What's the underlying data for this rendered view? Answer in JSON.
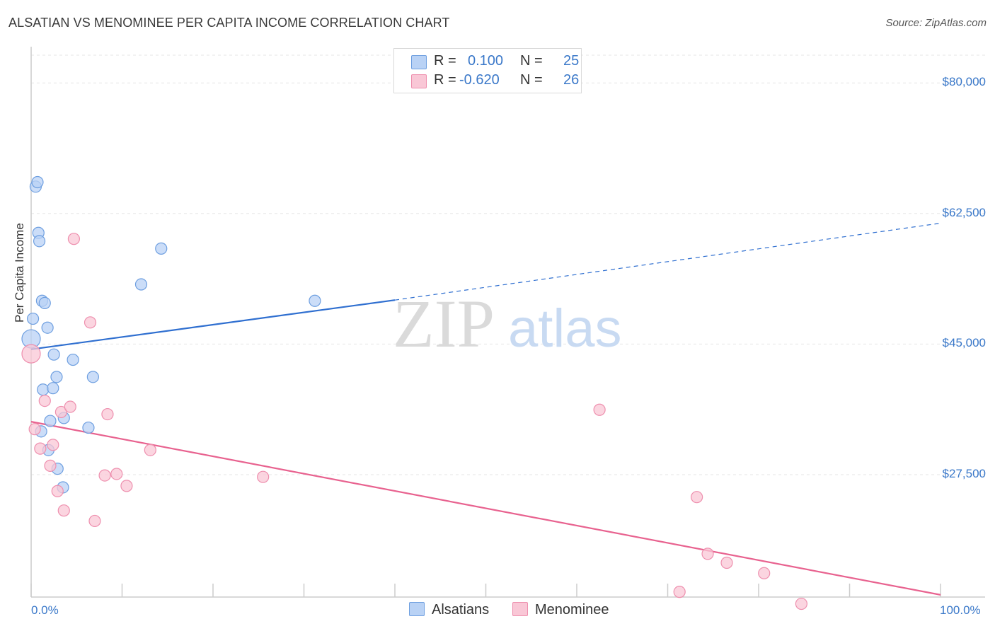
{
  "title": "ALSATIAN VS MENOMINEE PER CAPITA INCOME CORRELATION CHART",
  "source": "Source: ZipAtlas.com",
  "watermark": {
    "zip": "ZIP",
    "atlas": "atlas"
  },
  "legend_top": [
    {
      "r_label": "R =",
      "r_value": "0.100",
      "n_label": "N =",
      "n_value": "25",
      "color": "#b9d2f5"
    },
    {
      "r_label": "R =",
      "r_value": "-0.620",
      "n_label": "N =",
      "n_value": "26",
      "color": "#f9c7d6"
    }
  ],
  "legend_bottom": [
    {
      "label": "Alsatians",
      "color": "#b9d2f5"
    },
    {
      "label": "Menominee",
      "color": "#f9c7d6"
    }
  ],
  "colors": {
    "blue_fill": "#b9d2f5",
    "blue_stroke": "#6e9fe0",
    "blue_line": "#2f6fd0",
    "pink_fill": "#f9c7d6",
    "pink_stroke": "#ee8fae",
    "pink_line": "#e8628f",
    "grid": "#e6e6e6",
    "axis": "#cccccc",
    "label": "#3a78c9"
  },
  "chart_data": {
    "type": "scatter",
    "title": "ALSATIAN VS MENOMINEE PER CAPITA INCOME CORRELATION CHART",
    "xlabel": "",
    "ylabel": "Per Capita Income",
    "xlim": [
      0,
      100
    ],
    "ylim": [
      13000,
      84000
    ],
    "x_tick_labels": [
      "0.0%",
      "100.0%"
    ],
    "y_ticks": [
      27500,
      45000,
      62500,
      80000
    ],
    "y_tick_labels": [
      "$27,500",
      "$45,000",
      "$62,500",
      "$80,000"
    ],
    "grid": true,
    "series": [
      {
        "name": "Alsatians",
        "R": 0.1,
        "N": 25,
        "points": [
          [
            0.0,
            45700
          ],
          [
            0.2,
            48400
          ],
          [
            0.5,
            66100
          ],
          [
            0.7,
            66700
          ],
          [
            0.8,
            59900
          ],
          [
            0.9,
            58800
          ],
          [
            1.2,
            50800
          ],
          [
            1.5,
            50500
          ],
          [
            1.8,
            47200
          ],
          [
            2.5,
            43600
          ],
          [
            2.8,
            40600
          ],
          [
            1.3,
            38900
          ],
          [
            2.4,
            39100
          ],
          [
            4.6,
            42900
          ],
          [
            6.8,
            40600
          ],
          [
            1.1,
            33300
          ],
          [
            2.1,
            34700
          ],
          [
            3.6,
            35100
          ],
          [
            6.3,
            33800
          ],
          [
            1.9,
            30800
          ],
          [
            2.9,
            28300
          ],
          [
            3.5,
            25800
          ],
          [
            12.1,
            53000
          ],
          [
            14.3,
            57800
          ],
          [
            31.2,
            50800
          ]
        ],
        "trend": {
          "x_start": 0,
          "y_start": 44300,
          "x_solid_end": 40,
          "y_solid_end": 50900,
          "x_end": 100,
          "y_end": 61200
        }
      },
      {
        "name": "Menominee",
        "R": -0.62,
        "N": 26,
        "points": [
          [
            0.0,
            43700
          ],
          [
            0.4,
            33600
          ],
          [
            1.0,
            31000
          ],
          [
            1.5,
            37400
          ],
          [
            2.1,
            28700
          ],
          [
            2.4,
            31500
          ],
          [
            2.9,
            25300
          ],
          [
            3.3,
            35900
          ],
          [
            3.6,
            22700
          ],
          [
            4.3,
            36600
          ],
          [
            4.7,
            59100
          ],
          [
            6.5,
            47900
          ],
          [
            7.0,
            21300
          ],
          [
            8.1,
            27400
          ],
          [
            8.4,
            35600
          ],
          [
            9.4,
            27600
          ],
          [
            10.5,
            26000
          ],
          [
            13.1,
            30800
          ],
          [
            25.5,
            27200
          ],
          [
            62.5,
            36200
          ],
          [
            71.3,
            11800
          ],
          [
            73.2,
            24500
          ],
          [
            74.4,
            16900
          ],
          [
            76.5,
            15700
          ],
          [
            80.6,
            14300
          ],
          [
            84.7,
            10200
          ]
        ],
        "trend": {
          "x_start": 0,
          "y_start": 34600,
          "x_end": 100,
          "y_end": 11400
        }
      }
    ]
  }
}
